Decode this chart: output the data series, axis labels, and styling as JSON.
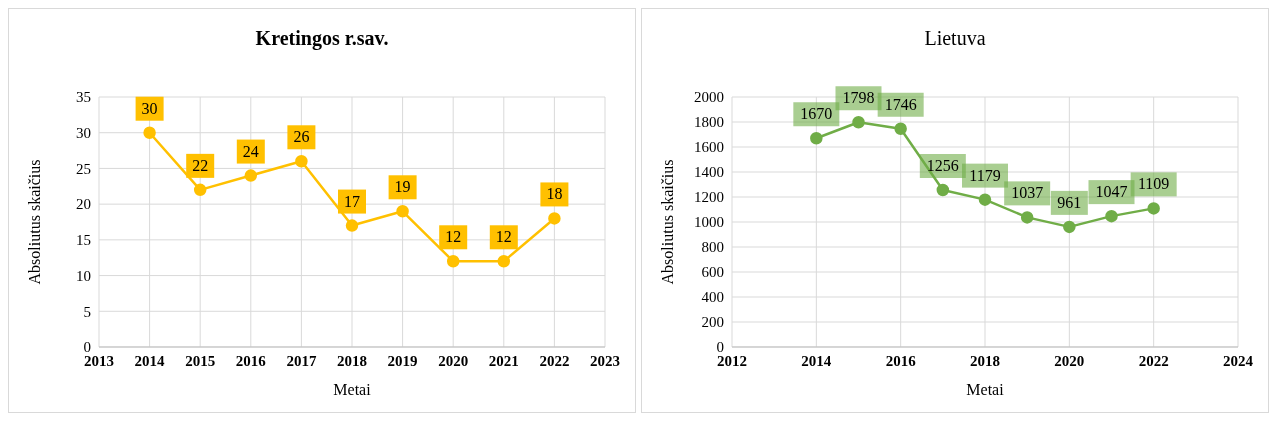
{
  "chart_data": [
    {
      "type": "line",
      "title": "Kretingos r.sav.",
      "xlabel": "Metai",
      "ylabel": "Absoliutus skaičius",
      "x": [
        2014,
        2015,
        2016,
        2017,
        2018,
        2019,
        2020,
        2021,
        2022
      ],
      "series": [
        {
          "color": "#ffc000",
          "values": [
            30,
            22,
            24,
            26,
            17,
            19,
            12,
            12,
            18
          ]
        }
      ],
      "xlim": [
        2013,
        2023
      ],
      "xticks": [
        2013,
        2014,
        2015,
        2016,
        2017,
        2018,
        2019,
        2020,
        2021,
        2022,
        2023
      ],
      "ylim": [
        0,
        35
      ],
      "yticks": [
        0,
        5,
        10,
        15,
        20,
        25,
        30,
        35
      ],
      "grid": true,
      "legend": false,
      "marker": "circle",
      "line_style": "solid",
      "data_labels": true
    },
    {
      "type": "line",
      "title": "Lietuva",
      "xlabel": "Metai",
      "ylabel": "Absoliutus skaičius",
      "x": [
        2014,
        2015,
        2016,
        2017,
        2018,
        2019,
        2020,
        2021,
        2022
      ],
      "series": [
        {
          "color": "#70ad47",
          "values": [
            1670,
            1798,
            1746,
            1256,
            1179,
            1037,
            961,
            1047,
            1109
          ]
        }
      ],
      "xlim": [
        2012,
        2024
      ],
      "xticks": [
        2012,
        2014,
        2016,
        2018,
        2020,
        2022,
        2024
      ],
      "ylim": [
        0,
        2000
      ],
      "yticks": [
        0,
        200,
        400,
        600,
        800,
        1000,
        1200,
        1400,
        1600,
        1800,
        2000
      ],
      "grid": true,
      "legend": false,
      "marker": "circle",
      "line_style": "solid",
      "data_labels": true
    }
  ]
}
